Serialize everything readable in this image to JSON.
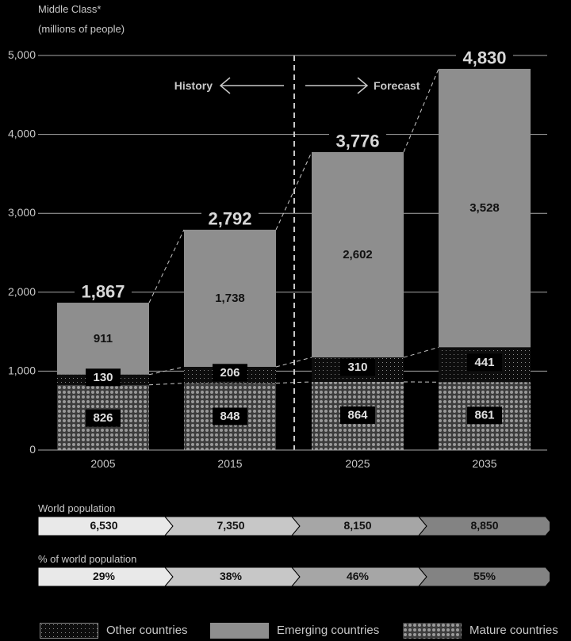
{
  "chart_data": {
    "type": "bar",
    "stacked": true,
    "ylabel_line1": "Middle Class*",
    "ylabel_line2": "(millions of people)",
    "categories": [
      "2005",
      "2015",
      "2025",
      "2035"
    ],
    "series": [
      {
        "name": "Mature countries",
        "values": [
          826,
          848,
          864,
          861
        ]
      },
      {
        "name": "Other countries",
        "values": [
          130,
          206,
          310,
          441
        ]
      },
      {
        "name": "Emerging countries",
        "values": [
          911,
          1738,
          2602,
          3528
        ]
      }
    ],
    "totals": [
      1867,
      2792,
      3776,
      4830
    ],
    "totals_text": [
      "1,867",
      "2,792",
      "3,776",
      "4,830"
    ],
    "series_text": {
      "Mature countries": [
        "826",
        "848",
        "864",
        "861"
      ],
      "Other countries": [
        "130",
        "206",
        "310",
        "441"
      ],
      "Emerging countries": [
        "911",
        "1,738",
        "2,602",
        "3,528"
      ]
    },
    "ylim": [
      0,
      5000
    ],
    "yticks": [
      0,
      1000,
      2000,
      3000,
      4000,
      5000
    ],
    "ytick_labels": [
      "0",
      "1,000",
      "2,000",
      "3,000",
      "4,000",
      "5,000"
    ],
    "grid": true,
    "annotations": {
      "history": "History",
      "forecast": "Forecast"
    },
    "legend_position": "bottom",
    "colors": {
      "background": "#000000",
      "emerging": "#8e8e8e",
      "other": "#0d0d0d",
      "mature": "#8a8a8a",
      "text": "#c8c8c8",
      "label_box": "#000000"
    }
  },
  "world_population": {
    "label": "World population",
    "values": [
      "6,530",
      "7,350",
      "8,150",
      "8,850"
    ]
  },
  "world_share": {
    "label": "% of world population",
    "values": [
      "29%",
      "38%",
      "46%",
      "55%"
    ]
  },
  "arrow_colors": [
    "#e9e9e9",
    "#c7c7c7",
    "#a6a6a6",
    "#838383"
  ],
  "legend": [
    {
      "label": "Other countries",
      "pattern": "other"
    },
    {
      "label": "Emerging countries",
      "pattern": "emerging"
    },
    {
      "label": "Mature countries",
      "pattern": "mature"
    }
  ]
}
